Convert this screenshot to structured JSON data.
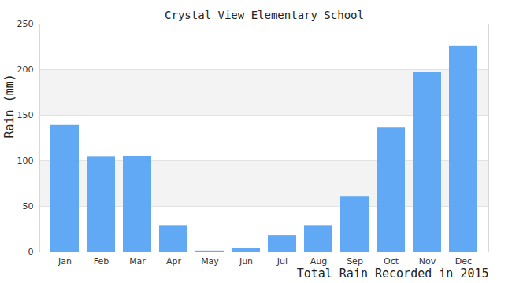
{
  "chart_data": {
    "type": "bar",
    "title": "Crystal View Elementary School",
    "x_label": "Total Rain Recorded in 2015",
    "y_label": "Rain (mm)",
    "categories": [
      "Jan",
      "Feb",
      "Mar",
      "Apr",
      "May",
      "Jun",
      "Jul",
      "Aug",
      "Sep",
      "Oct",
      "Nov",
      "Dec"
    ],
    "values": [
      139,
      104,
      105,
      29,
      1,
      4,
      18,
      29,
      61,
      136,
      197,
      226
    ],
    "color": "#61a8f5",
    "ylim": [
      0,
      250
    ],
    "yticks": [
      0,
      50,
      100,
      150,
      200,
      250
    ],
    "grid": true
  }
}
